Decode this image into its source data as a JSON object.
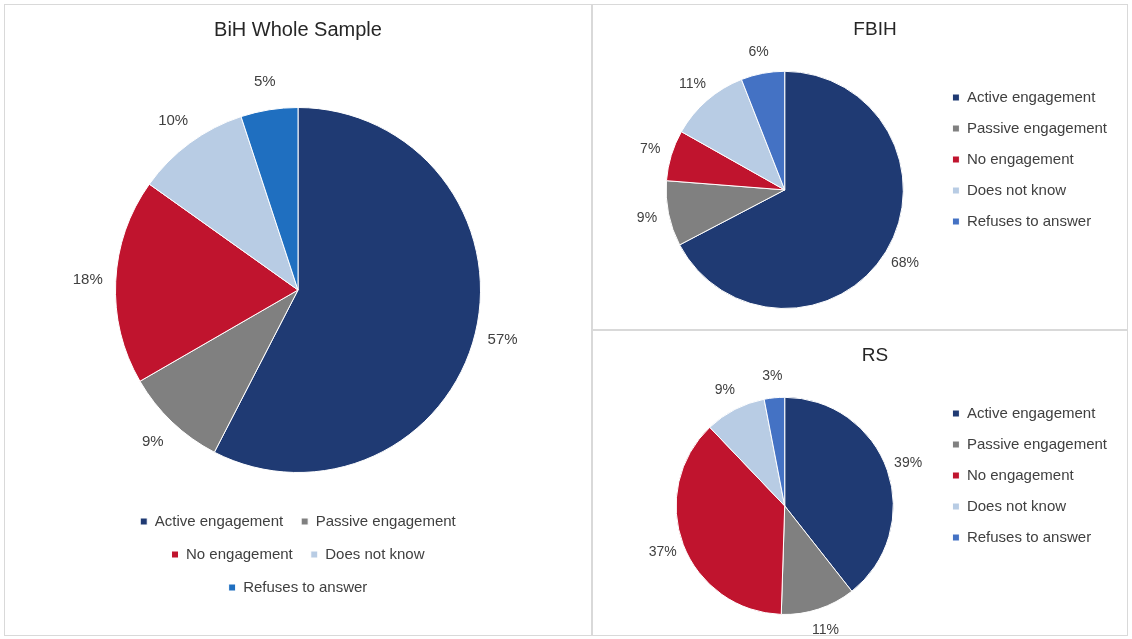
{
  "chart_data": [
    {
      "type": "pie",
      "title": "BiH Whole Sample",
      "categories": [
        "Active engagement",
        "Passive engagement",
        "No engagement",
        "Does not know",
        "Refuses to answer"
      ],
      "values": [
        57,
        9,
        18,
        10,
        5
      ],
      "value_labels": [
        "57%",
        "9%",
        "18%",
        "10%",
        "5%"
      ],
      "colors": [
        "#1f3a73",
        "#808080",
        "#c0142e",
        "#b8cce4",
        "#1f6fc0"
      ],
      "legend": "bottom"
    },
    {
      "type": "pie",
      "title": "FBIH",
      "categories": [
        "Active engagement",
        "Passive engagement",
        "No engagement",
        "Does not know",
        "Refuses to answer"
      ],
      "values": [
        68,
        9,
        7,
        11,
        6
      ],
      "value_labels": [
        "68%",
        "9%",
        "7%",
        "11%",
        "6%"
      ],
      "colors": [
        "#1f3a73",
        "#808080",
        "#c0142e",
        "#b8cce4",
        "#4472c4"
      ],
      "legend": "right"
    },
    {
      "type": "pie",
      "title": "RS",
      "categories": [
        "Active engagement",
        "Passive engagement",
        "No engagement",
        "Does not know",
        "Refuses to answer"
      ],
      "values": [
        39,
        11,
        37,
        9,
        3
      ],
      "value_labels": [
        "39%",
        "11%",
        "37%",
        "9%",
        "3%"
      ],
      "colors": [
        "#1f3a73",
        "#808080",
        "#c0142e",
        "#b8cce4",
        "#4472c4"
      ],
      "legend": "right"
    }
  ]
}
